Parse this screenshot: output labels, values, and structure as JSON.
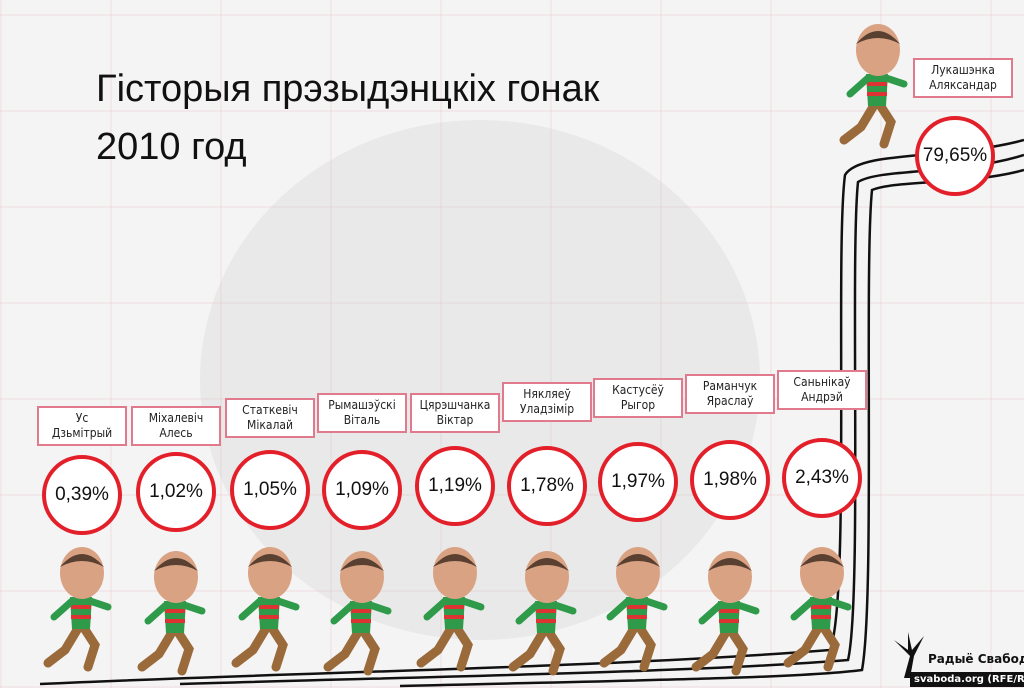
{
  "title": {
    "line1": "Гісторыя прэзыдэнцкіх гонак",
    "line2": "2010 год"
  },
  "candidates": [
    {
      "name": "Ус\nДзьмітрый",
      "l1": "Ус",
      "l2": "Дзьмітрый",
      "percent": "0,39%",
      "value": 0.39
    },
    {
      "l1": "Міхалевіч",
      "l2": "Алесь",
      "percent": "1,02%",
      "value": 1.02
    },
    {
      "l1": "Статкевіч",
      "l2": "Мікалай",
      "percent": "1,05%",
      "value": 1.05
    },
    {
      "l1": "Рымашэўскі",
      "l2": "Віталь",
      "percent": "1,09%",
      "value": 1.09
    },
    {
      "l1": "Цярэшчанка",
      "l2": "Віктар",
      "percent": "1,19%",
      "value": 1.19
    },
    {
      "l1": "Някляеў",
      "l2": "Уладзімір",
      "percent": "1,78%",
      "value": 1.78
    },
    {
      "l1": "Кастусёў",
      "l2": "Рыгор",
      "percent": "1,97%",
      "value": 1.97
    },
    {
      "l1": "Раманчук",
      "l2": "Яраслаў",
      "percent": "1,98%",
      "value": 1.98
    },
    {
      "l1": "Саньнікаў",
      "l2": "Андрэй",
      "percent": "2,43%",
      "value": 2.43
    }
  ],
  "winner": {
    "l1": "Лукашэнка",
    "l2": "Аляксандар",
    "percent": "79,65%",
    "value": 79.65
  },
  "logo": {
    "name": "Радыё Свабода",
    "url": "svaboda.org (RFE/RL)"
  },
  "colors": {
    "accent": "#e3202a",
    "label_border": "#e07a8c",
    "shirt_green": "#2e9a4a",
    "shirt_red": "#d33",
    "legs": "#9a6a3a"
  }
}
